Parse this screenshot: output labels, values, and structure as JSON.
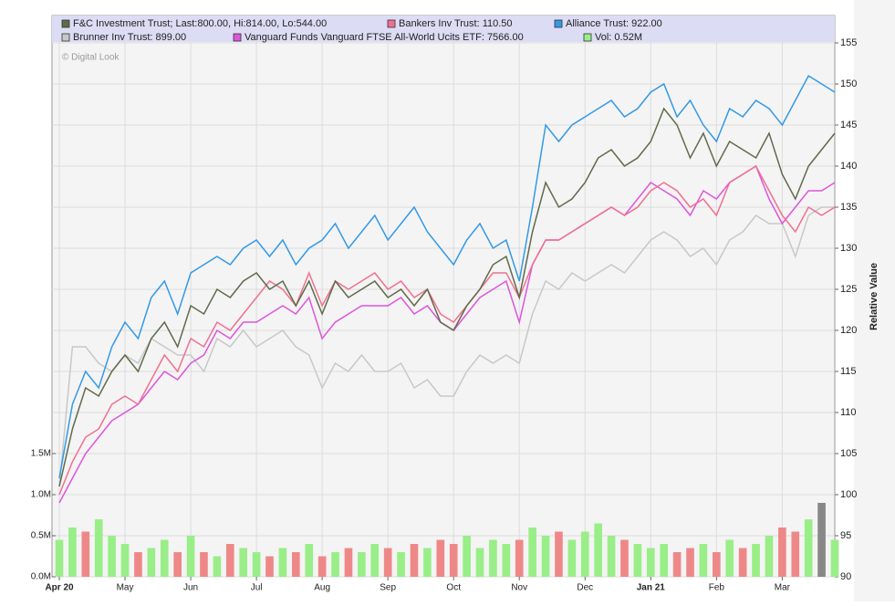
{
  "chart_data": {
    "type": "line",
    "watermark": "© Digital Look",
    "ylabel": "Relative Value",
    "categories": [
      "Apr 20",
      null,
      null,
      null,
      null,
      "May",
      null,
      null,
      null,
      null,
      "Jun",
      null,
      null,
      null,
      null,
      "Jul",
      null,
      null,
      null,
      null,
      "Aug",
      null,
      null,
      null,
      null,
      "Sep",
      null,
      null,
      null,
      null,
      "Oct",
      null,
      null,
      null,
      null,
      "Nov",
      null,
      null,
      null,
      null,
      "Dec",
      null,
      null,
      null,
      null,
      "Jan 21",
      null,
      null,
      null,
      null,
      "Feb",
      null,
      null,
      null,
      null,
      "Mar",
      null,
      null,
      null,
      null
    ],
    "ylim": [
      90,
      155
    ],
    "yticks": [
      90,
      95,
      100,
      105,
      110,
      115,
      120,
      125,
      130,
      135,
      140,
      145,
      150,
      155
    ],
    "y2lim": [
      0,
      6.5
    ],
    "y2ticks": [
      {
        "value": 0,
        "label": "0.0M"
      },
      {
        "value": 0.5,
        "label": "0.5M"
      },
      {
        "value": 1,
        "label": "1.0M"
      },
      {
        "value": 1.5,
        "label": "1.5M"
      }
    ],
    "grid": true,
    "series": [
      {
        "name": "F&C Investment Trust; Last:800.00, Hi:814.00, Lo:544.00",
        "color": "#5f6a4a",
        "values": [
          101,
          108,
          113,
          112,
          115,
          117,
          115,
          119,
          121,
          118,
          123,
          122,
          125,
          124,
          126,
          127,
          125,
          126,
          123,
          126,
          122,
          126,
          124,
          125,
          126,
          124,
          125,
          123,
          125,
          121,
          120,
          123,
          125,
          128,
          129,
          124,
          132,
          138,
          135,
          136,
          138,
          141,
          142,
          140,
          141,
          143,
          147,
          145,
          141,
          144,
          140,
          143,
          142,
          141,
          144,
          139,
          136,
          140,
          142,
          144
        ]
      },
      {
        "name": "Bankers Inv Trust: 110.50",
        "color": "#f07090",
        "values": [
          100,
          104,
          107,
          108,
          111,
          112,
          111,
          114,
          117,
          115,
          119,
          118,
          121,
          120,
          122,
          124,
          126,
          125,
          123,
          127,
          123,
          126,
          125,
          126,
          127,
          125,
          126,
          124,
          125,
          122,
          121,
          123,
          125,
          127,
          127,
          124,
          128,
          131,
          131,
          132,
          133,
          134,
          135,
          134,
          135,
          137,
          138,
          137,
          135,
          136,
          134,
          138,
          139,
          140,
          137,
          134,
          132,
          135,
          134,
          135
        ]
      },
      {
        "name": "Alliance Trust: 922.00",
        "color": "#3399e6",
        "values": [
          102,
          111,
          115,
          113,
          118,
          121,
          119,
          124,
          126,
          122,
          127,
          128,
          129,
          128,
          130,
          131,
          129,
          131,
          128,
          130,
          131,
          133,
          130,
          132,
          134,
          131,
          133,
          135,
          132,
          130,
          128,
          131,
          133,
          130,
          131,
          126,
          135,
          145,
          143,
          145,
          146,
          147,
          148,
          146,
          147,
          149,
          150,
          146,
          148,
          145,
          143,
          147,
          146,
          148,
          147,
          145,
          148,
          151,
          150,
          149
        ]
      },
      {
        "name": "Brunner Inv Trust: 899.00",
        "color": "#c8c8c8",
        "values": [
          101,
          118,
          118,
          116,
          115,
          117,
          116,
          119,
          118,
          117,
          117,
          115,
          119,
          118,
          120,
          118,
          119,
          120,
          118,
          117,
          113,
          116,
          115,
          117,
          115,
          115,
          116,
          113,
          114,
          112,
          112,
          115,
          117,
          116,
          117,
          116,
          122,
          126,
          125,
          127,
          126,
          127,
          128,
          127,
          129,
          131,
          132,
          131,
          129,
          130,
          128,
          131,
          132,
          134,
          133,
          133,
          129,
          134,
          135,
          135
        ]
      },
      {
        "name": "Vanguard Funds Vanguard FTSE All-World Ucits ETF: 7566.00",
        "color": "#dd55dd",
        "values": [
          99,
          102,
          105,
          107,
          109,
          110,
          111,
          113,
          115,
          114,
          116,
          117,
          120,
          119,
          121,
          121,
          122,
          123,
          122,
          124,
          119,
          121,
          122,
          123,
          123,
          123,
          124,
          122,
          123,
          121,
          120,
          122,
          124,
          125,
          126,
          121,
          128,
          131,
          131,
          132,
          133,
          134,
          135,
          134,
          136,
          138,
          137,
          136,
          134,
          137,
          136,
          138,
          139,
          140,
          136,
          133,
          135,
          137,
          137,
          138
        ]
      }
    ],
    "volume": {
      "name": "Vol: 0.52M",
      "color": "#99ee88",
      "axis": "y2",
      "values": [
        0.45,
        0.6,
        0.55,
        0.7,
        0.5,
        0.4,
        0.3,
        0.35,
        0.45,
        0.3,
        0.5,
        0.3,
        0.25,
        0.4,
        0.35,
        0.3,
        0.25,
        0.35,
        0.3,
        0.4,
        0.25,
        0.3,
        0.35,
        0.3,
        0.4,
        0.35,
        0.3,
        0.4,
        0.35,
        0.45,
        0.4,
        0.5,
        0.35,
        0.45,
        0.4,
        0.45,
        0.6,
        0.5,
        0.55,
        0.45,
        0.55,
        0.65,
        0.5,
        0.45,
        0.4,
        0.35,
        0.4,
        0.3,
        0.35,
        0.4,
        0.3,
        0.45,
        0.35,
        0.4,
        0.5,
        0.6,
        0.55,
        0.7,
        0.9,
        0.45
      ],
      "colors": [
        "#99ee88",
        "#99ee88",
        "#ee8888",
        "#99ee88",
        "#99ee88",
        "#99ee88",
        "#ee8888",
        "#99ee88",
        "#99ee88",
        "#ee8888",
        "#99ee88",
        "#ee8888",
        "#99ee88",
        "#ee8888",
        "#99ee88",
        "#99ee88",
        "#ee8888",
        "#99ee88",
        "#ee8888",
        "#99ee88",
        "#ee8888",
        "#99ee88",
        "#ee8888",
        "#99ee88",
        "#99ee88",
        "#ee8888",
        "#99ee88",
        "#ee8888",
        "#99ee88",
        "#ee8888",
        "#ee8888",
        "#99ee88",
        "#99ee88",
        "#99ee88",
        "#99ee88",
        "#ee8888",
        "#99ee88",
        "#99ee88",
        "#ee8888",
        "#99ee88",
        "#99ee88",
        "#99ee88",
        "#99ee88",
        "#ee8888",
        "#99ee88",
        "#99ee88",
        "#99ee88",
        "#ee8888",
        "#ee8888",
        "#99ee88",
        "#ee8888",
        "#99ee88",
        "#ee8888",
        "#99ee88",
        "#99ee88",
        "#ee8888",
        "#ee8888",
        "#99ee88",
        "#888888",
        "#99ee88"
      ]
    }
  }
}
